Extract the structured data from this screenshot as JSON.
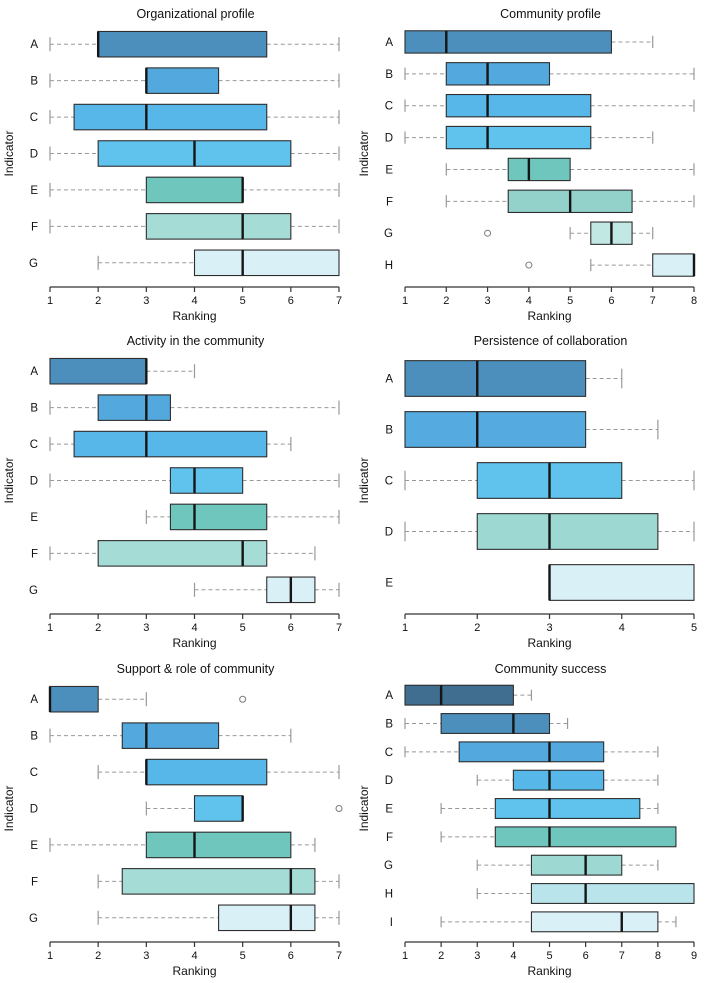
{
  "figure": {
    "background": "#ffffff",
    "layout": "2x3-grid",
    "grid": false,
    "legend": "none"
  },
  "chart_data": [
    {
      "type": "boxplot",
      "orientation": "horizontal",
      "title": "Organizational profile",
      "xlabel": "Ranking",
      "ylabel": "Indicator",
      "xlim": [
        1,
        7
      ],
      "xticks": [
        1,
        2,
        3,
        4,
        5,
        6,
        7
      ],
      "categories": [
        "A",
        "B",
        "C",
        "D",
        "E",
        "F",
        "G"
      ],
      "boxes": [
        {
          "whislo": 1,
          "q1": 2,
          "med": 2,
          "q3": 5.5,
          "whishi": 7,
          "color": "#4d8fbc",
          "outliers": []
        },
        {
          "whislo": 1,
          "q1": 3,
          "med": 3,
          "q3": 4.5,
          "whishi": 7,
          "color": "#53a9de",
          "outliers": []
        },
        {
          "whislo": 1,
          "q1": 1.5,
          "med": 3,
          "q3": 5.5,
          "whishi": 7,
          "color": "#58b7e9",
          "outliers": []
        },
        {
          "whislo": 1,
          "q1": 2,
          "med": 4,
          "q3": 6,
          "whishi": 7,
          "color": "#5fc3ee",
          "outliers": []
        },
        {
          "whislo": 1,
          "q1": 3,
          "med": 5,
          "q3": 5,
          "whishi": 7,
          "color": "#6ec6bd",
          "outliers": []
        },
        {
          "whislo": 1,
          "q1": 3,
          "med": 5,
          "q3": 6,
          "whishi": 7,
          "color": "#a5dcd6",
          "outliers": []
        },
        {
          "whislo": 2,
          "q1": 4,
          "med": 5,
          "q3": 7,
          "whishi": 7,
          "color": "#daf0f7",
          "outliers": []
        }
      ]
    },
    {
      "type": "boxplot",
      "orientation": "horizontal",
      "title": "Community profile",
      "xlabel": "Ranking",
      "ylabel": "Indicator",
      "xlim": [
        1,
        8
      ],
      "xticks": [
        1,
        2,
        3,
        4,
        5,
        6,
        7,
        8
      ],
      "categories": [
        "A",
        "B",
        "C",
        "D",
        "E",
        "F",
        "G",
        "H"
      ],
      "boxes": [
        {
          "whislo": 1,
          "q1": 1,
          "med": 2,
          "q3": 6,
          "whishi": 7,
          "color": "#4d8fbc",
          "outliers": []
        },
        {
          "whislo": 1,
          "q1": 2,
          "med": 3,
          "q3": 4.5,
          "whishi": 8,
          "color": "#53a9de",
          "outliers": []
        },
        {
          "whislo": 1,
          "q1": 2,
          "med": 3,
          "q3": 5.5,
          "whishi": 8,
          "color": "#58b7e9",
          "outliers": []
        },
        {
          "whislo": 1,
          "q1": 2,
          "med": 3,
          "q3": 5.5,
          "whishi": 7,
          "color": "#5fc3ee",
          "outliers": []
        },
        {
          "whislo": 2,
          "q1": 3.5,
          "med": 4,
          "q3": 5,
          "whishi": 8,
          "color": "#6ec6bd",
          "outliers": []
        },
        {
          "whislo": 2,
          "q1": 3.5,
          "med": 5,
          "q3": 6.5,
          "whishi": 8,
          "color": "#93d2cb",
          "outliers": []
        },
        {
          "whislo": 5,
          "q1": 5.5,
          "med": 6,
          "q3": 6.5,
          "whishi": 7,
          "color": "#c2e8e4",
          "outliers": [
            3
          ]
        },
        {
          "whislo": 5.5,
          "q1": 7,
          "med": 8,
          "q3": 8,
          "whishi": 8,
          "color": "#daf0f7",
          "outliers": [
            4
          ]
        }
      ]
    },
    {
      "type": "boxplot",
      "orientation": "horizontal",
      "title": "Activity in the community",
      "xlabel": "Ranking",
      "ylabel": "Indicator",
      "xlim": [
        1,
        7
      ],
      "xticks": [
        1,
        2,
        3,
        4,
        5,
        6,
        7
      ],
      "categories": [
        "A",
        "B",
        "C",
        "D",
        "E",
        "F",
        "G"
      ],
      "boxes": [
        {
          "whislo": 1,
          "q1": 1,
          "med": 3,
          "q3": 3,
          "whishi": 4,
          "color": "#4d8fbc",
          "outliers": []
        },
        {
          "whislo": 1,
          "q1": 2,
          "med": 3,
          "q3": 3.5,
          "whishi": 7,
          "color": "#53a9de",
          "outliers": []
        },
        {
          "whislo": 1,
          "q1": 1.5,
          "med": 3,
          "q3": 5.5,
          "whishi": 6,
          "color": "#58b7e9",
          "outliers": []
        },
        {
          "whislo": 1,
          "q1": 3.5,
          "med": 4,
          "q3": 5,
          "whishi": 7,
          "color": "#5fc3ee",
          "outliers": []
        },
        {
          "whislo": 3,
          "q1": 3.5,
          "med": 4,
          "q3": 5.5,
          "whishi": 7,
          "color": "#6ec6bd",
          "outliers": []
        },
        {
          "whislo": 1,
          "q1": 2,
          "med": 5,
          "q3": 5.5,
          "whishi": 6.5,
          "color": "#a5dcd6",
          "outliers": []
        },
        {
          "whislo": 4,
          "q1": 5.5,
          "med": 6,
          "q3": 6.5,
          "whishi": 7,
          "color": "#daf0f7",
          "outliers": []
        }
      ]
    },
    {
      "type": "boxplot",
      "orientation": "horizontal",
      "title": "Persistence of collaboration",
      "xlabel": "Ranking",
      "ylabel": "Indicator",
      "xlim": [
        1,
        5
      ],
      "xticks": [
        1,
        2,
        3,
        4,
        5
      ],
      "categories": [
        "A",
        "B",
        "C",
        "D",
        "E"
      ],
      "boxes": [
        {
          "whislo": 1,
          "q1": 1,
          "med": 2,
          "q3": 3.5,
          "whishi": 4,
          "color": "#4d8fbc",
          "outliers": []
        },
        {
          "whislo": 1,
          "q1": 1,
          "med": 2,
          "q3": 3.5,
          "whishi": 4.5,
          "color": "#55abdf",
          "outliers": []
        },
        {
          "whislo": 1,
          "q1": 2,
          "med": 3,
          "q3": 4,
          "whishi": 5,
          "color": "#5fc3ee",
          "outliers": []
        },
        {
          "whislo": 1,
          "q1": 2,
          "med": 3,
          "q3": 4.5,
          "whishi": 5,
          "color": "#9ed8d2",
          "outliers": []
        },
        {
          "whislo": 3,
          "q1": 3,
          "med": 3,
          "q3": 5,
          "whishi": 5,
          "color": "#daf0f7",
          "outliers": []
        }
      ]
    },
    {
      "type": "boxplot",
      "orientation": "horizontal",
      "title": "Support & role of community",
      "xlabel": "Ranking",
      "ylabel": "Indicator",
      "xlim": [
        1,
        7
      ],
      "xticks": [
        1,
        2,
        3,
        4,
        5,
        6,
        7
      ],
      "categories": [
        "A",
        "B",
        "C",
        "D",
        "E",
        "F",
        "G"
      ],
      "boxes": [
        {
          "whislo": 1,
          "q1": 1,
          "med": 1,
          "q3": 2,
          "whishi": 3,
          "color": "#4d8fbc",
          "outliers": [
            5
          ]
        },
        {
          "whislo": 1,
          "q1": 2.5,
          "med": 3,
          "q3": 4.5,
          "whishi": 6,
          "color": "#53a9de",
          "outliers": []
        },
        {
          "whislo": 2,
          "q1": 3,
          "med": 3,
          "q3": 5.5,
          "whishi": 7,
          "color": "#58b7e9",
          "outliers": []
        },
        {
          "whislo": 3,
          "q1": 4,
          "med": 5,
          "q3": 5,
          "whishi": 5,
          "color": "#5fc3ee",
          "outliers": [
            7
          ]
        },
        {
          "whislo": 1,
          "q1": 3,
          "med": 4,
          "q3": 6,
          "whishi": 6.5,
          "color": "#6ec6bd",
          "outliers": []
        },
        {
          "whislo": 2,
          "q1": 2.5,
          "med": 6,
          "q3": 6.5,
          "whishi": 7,
          "color": "#a5dcd6",
          "outliers": []
        },
        {
          "whislo": 2,
          "q1": 4.5,
          "med": 6,
          "q3": 6.5,
          "whishi": 7,
          "color": "#daf0f7",
          "outliers": []
        }
      ]
    },
    {
      "type": "boxplot",
      "orientation": "horizontal",
      "title": "Community success",
      "xlabel": "Ranking",
      "ylabel": "Indicator",
      "xlim": [
        1,
        9
      ],
      "xticks": [
        1,
        2,
        3,
        4,
        5,
        6,
        7,
        8,
        9
      ],
      "categories": [
        "A",
        "B",
        "C",
        "D",
        "E",
        "F",
        "G",
        "H",
        "I"
      ],
      "boxes": [
        {
          "whislo": 1,
          "q1": 1,
          "med": 2,
          "q3": 4,
          "whishi": 4.5,
          "color": "#3f6e91",
          "outliers": []
        },
        {
          "whislo": 1,
          "q1": 2,
          "med": 4,
          "q3": 5,
          "whishi": 5.5,
          "color": "#4d8fbc",
          "outliers": []
        },
        {
          "whislo": 1,
          "q1": 2.5,
          "med": 5,
          "q3": 6.5,
          "whishi": 8,
          "color": "#53a9de",
          "outliers": []
        },
        {
          "whislo": 3,
          "q1": 4,
          "med": 5,
          "q3": 6.5,
          "whishi": 8,
          "color": "#58b7e9",
          "outliers": []
        },
        {
          "whislo": 2,
          "q1": 3.5,
          "med": 5,
          "q3": 7.5,
          "whishi": 8,
          "color": "#5fc3ee",
          "outliers": []
        },
        {
          "whislo": 2,
          "q1": 3.5,
          "med": 5,
          "q3": 8.5,
          "whishi": 8.5,
          "color": "#6ec6bd",
          "outliers": []
        },
        {
          "whislo": 3,
          "q1": 4.5,
          "med": 6,
          "q3": 7,
          "whishi": 8,
          "color": "#9ed8d2",
          "outliers": []
        },
        {
          "whislo": 3,
          "q1": 4.5,
          "med": 6,
          "q3": 9,
          "whishi": 9,
          "color": "#b9e4ec",
          "outliers": []
        },
        {
          "whislo": 2,
          "q1": 4.5,
          "med": 7,
          "q3": 8,
          "whishi": 8.5,
          "color": "#daf0f7",
          "outliers": []
        }
      ]
    }
  ]
}
